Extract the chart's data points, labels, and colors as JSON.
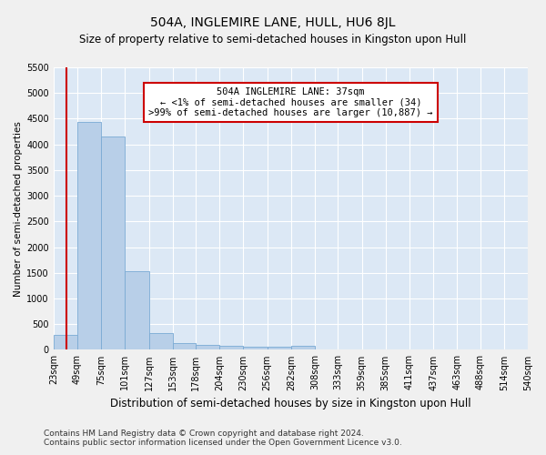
{
  "title": "504A, INGLEMIRE LANE, HULL, HU6 8JL",
  "subtitle": "Size of property relative to semi-detached houses in Kingston upon Hull",
  "xlabel": "Distribution of semi-detached houses by size in Kingston upon Hull",
  "ylabel": "Number of semi-detached properties",
  "footer1": "Contains HM Land Registry data © Crown copyright and database right 2024.",
  "footer2": "Contains public sector information licensed under the Open Government Licence v3.0.",
  "annotation_line1": "504A INGLEMIRE LANE: 37sqm",
  "annotation_line2": "← <1% of semi-detached houses are smaller (34)",
  "annotation_line3": ">99% of semi-detached houses are larger (10,887) →",
  "property_size": 37,
  "bin_edges": [
    23,
    49,
    75,
    101,
    127,
    153,
    178,
    204,
    230,
    256,
    282,
    308,
    333,
    359,
    385,
    411,
    437,
    463,
    488,
    514,
    540
  ],
  "bar_heights": [
    290,
    4430,
    4150,
    1540,
    320,
    130,
    90,
    70,
    60,
    60,
    70,
    0,
    0,
    0,
    0,
    0,
    0,
    0,
    0,
    0
  ],
  "bar_color": "#b8cfe8",
  "bar_edgecolor": "#7aaad4",
  "vline_color": "#cc0000",
  "annotation_box_edgecolor": "#cc0000",
  "annotation_box_facecolor": "#ffffff",
  "fig_background_color": "#f0f0f0",
  "plot_background_color": "#dce8f5",
  "grid_color": "#ffffff",
  "ylim": [
    0,
    5500
  ],
  "yticks": [
    0,
    500,
    1000,
    1500,
    2000,
    2500,
    3000,
    3500,
    4000,
    4500,
    5000,
    5500
  ],
  "title_fontsize": 10,
  "subtitle_fontsize": 8.5,
  "xlabel_fontsize": 8.5,
  "ylabel_fontsize": 7.5,
  "tick_fontsize": 7,
  "footer_fontsize": 6.5,
  "annotation_fontsize": 7.5
}
